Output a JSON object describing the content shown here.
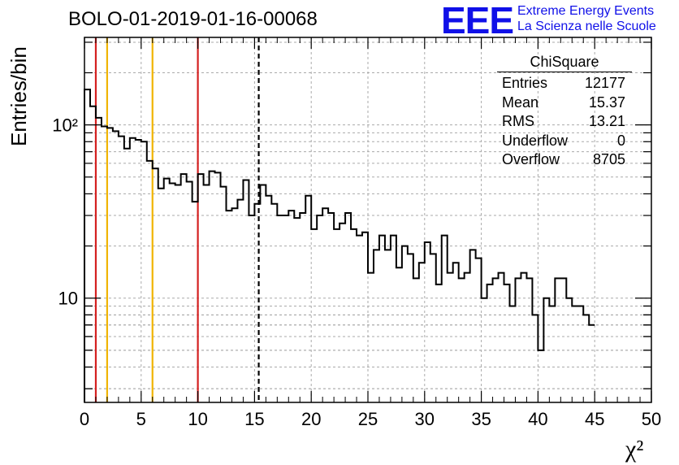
{
  "header": {
    "title": "BOLO-01-2019-01-16-00068",
    "logo_mark": "EEE",
    "logo_line1": "Extreme Energy Events",
    "logo_line2": "La Scienza nelle Scuole"
  },
  "stats_box": {
    "name": "ChiSquare",
    "rows": [
      {
        "label": "Entries",
        "value": "12177"
      },
      {
        "label": "Mean",
        "value": "15.37"
      },
      {
        "label": "RMS",
        "value": "13.21"
      },
      {
        "label": "Underflow",
        "value": "0"
      },
      {
        "label": "Overflow",
        "value": "8705"
      }
    ]
  },
  "chart_data": {
    "type": "histogram",
    "title": "BOLO-01-2019-01-16-00068",
    "xlabel": "χ²",
    "ylabel": "Entries/bin",
    "yscale": "log",
    "xlim": [
      0,
      50
    ],
    "ylim": [
      2.5,
      320
    ],
    "grid": true,
    "bin_width": 0.5,
    "x_ticks": [
      0,
      5,
      10,
      15,
      20,
      25,
      30,
      35,
      40,
      45,
      50
    ],
    "x_tick_labels": [
      "0",
      "5",
      "10",
      "15",
      "20",
      "25",
      "30",
      "35",
      "40",
      "45",
      "50"
    ],
    "y_tick_labels": [
      "10",
      "10²"
    ],
    "y_tick_values": [
      10,
      100
    ],
    "values": [
      160,
      128,
      110,
      98,
      96,
      92,
      86,
      73,
      84,
      82,
      80,
      62,
      56,
      43,
      49,
      46,
      45,
      52,
      47,
      36,
      52,
      45,
      54,
      53,
      44,
      32,
      33,
      37,
      48,
      30,
      35,
      45,
      39,
      35,
      30,
      30,
      32,
      29,
      31,
      39,
      25,
      30,
      33,
      31,
      25,
      27,
      31,
      25,
      23,
      24,
      14,
      19,
      23,
      19,
      23,
      15,
      20,
      18,
      13,
      16,
      21,
      18,
      12,
      23,
      14,
      16,
      13,
      14,
      19,
      17,
      10,
      12,
      13,
      14,
      12,
      9,
      13,
      14,
      13,
      8,
      5,
      10,
      9,
      13,
      13,
      10,
      9,
      9,
      8,
      7
    ],
    "markers": [
      {
        "x": 1,
        "color": "#d42020",
        "style": "solid"
      },
      {
        "x": 2,
        "color": "#f0b400",
        "style": "solid"
      },
      {
        "x": 6,
        "color": "#f0b400",
        "style": "solid"
      },
      {
        "x": 10,
        "color": "#d42020",
        "style": "solid"
      },
      {
        "x": 15.37,
        "color": "#000000",
        "style": "dashed"
      }
    ]
  }
}
